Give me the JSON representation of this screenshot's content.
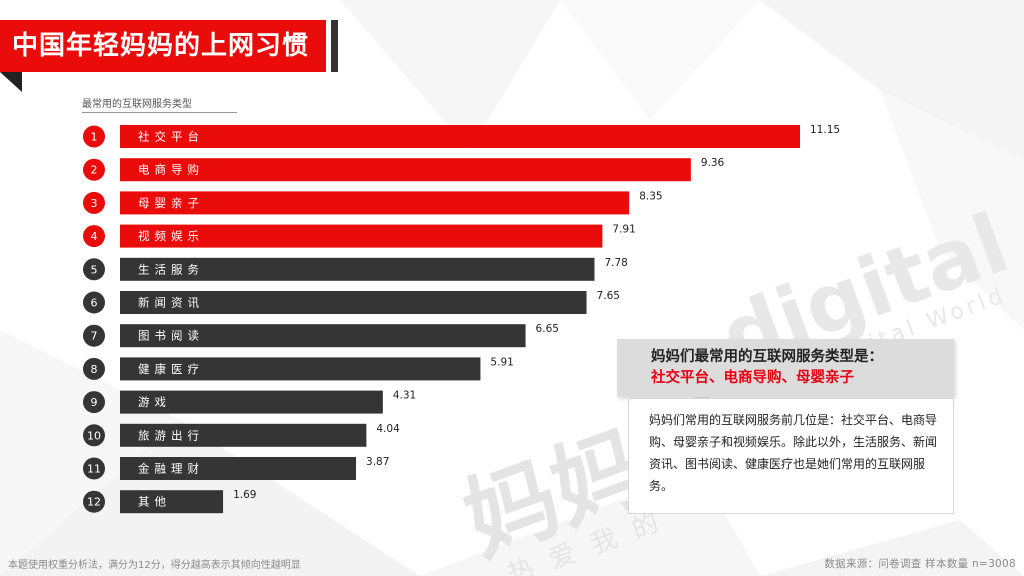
{
  "page": {
    "title": "中国年轻妈妈的上网习惯",
    "chart_subtitle": "最常用的互联网服务类型",
    "footnote": "本题使用权重分析法，满分为12分，得分越高表示其倾向性越明显",
    "source": "数据来源：问卷调查 样本数量 n=3008"
  },
  "callout": {
    "title": "妈妈们最常用的互联网服务类型是：",
    "highlight": "社交平台、电商导购、母婴亲子"
  },
  "description": {
    "text": "妈妈们常用的互联网服务前几位是：社交平台、电商导购、母婴亲子和视频娱乐。除此以外，生活服务、新闻资讯、图书阅读、健康医疗也是她们常用的互联网服务。"
  },
  "watermark": {
    "main": "妈妈圈",
    "brand": "digital",
    "tagline": "Topdigital World",
    "slogan": "热爱我的"
  },
  "colors": {
    "highlight": "#ea0b0b",
    "normal": "#353535",
    "callout_highlight": "#e60012"
  },
  "chart_data": {
    "type": "bar",
    "orientation": "horizontal",
    "title": "最常用的互联网服务类型",
    "ranks": [
      "1",
      "2",
      "3",
      "4",
      "5",
      "6",
      "7",
      "8",
      "9",
      "10",
      "11",
      "12"
    ],
    "categories": [
      "社交平台",
      "电商导购",
      "母婴亲子",
      "视频娱乐",
      "生活服务",
      "新闻资讯",
      "图书阅读",
      "健康医疗",
      "游戏",
      "旅游出行",
      "金融理财",
      "其他"
    ],
    "values": [
      11.15,
      9.36,
      8.35,
      7.91,
      7.78,
      7.65,
      6.65,
      5.91,
      4.31,
      4.04,
      3.87,
      1.69
    ],
    "highlighted_count": 4,
    "xlim": [
      0,
      12
    ],
    "grid": false,
    "legend": "none"
  }
}
